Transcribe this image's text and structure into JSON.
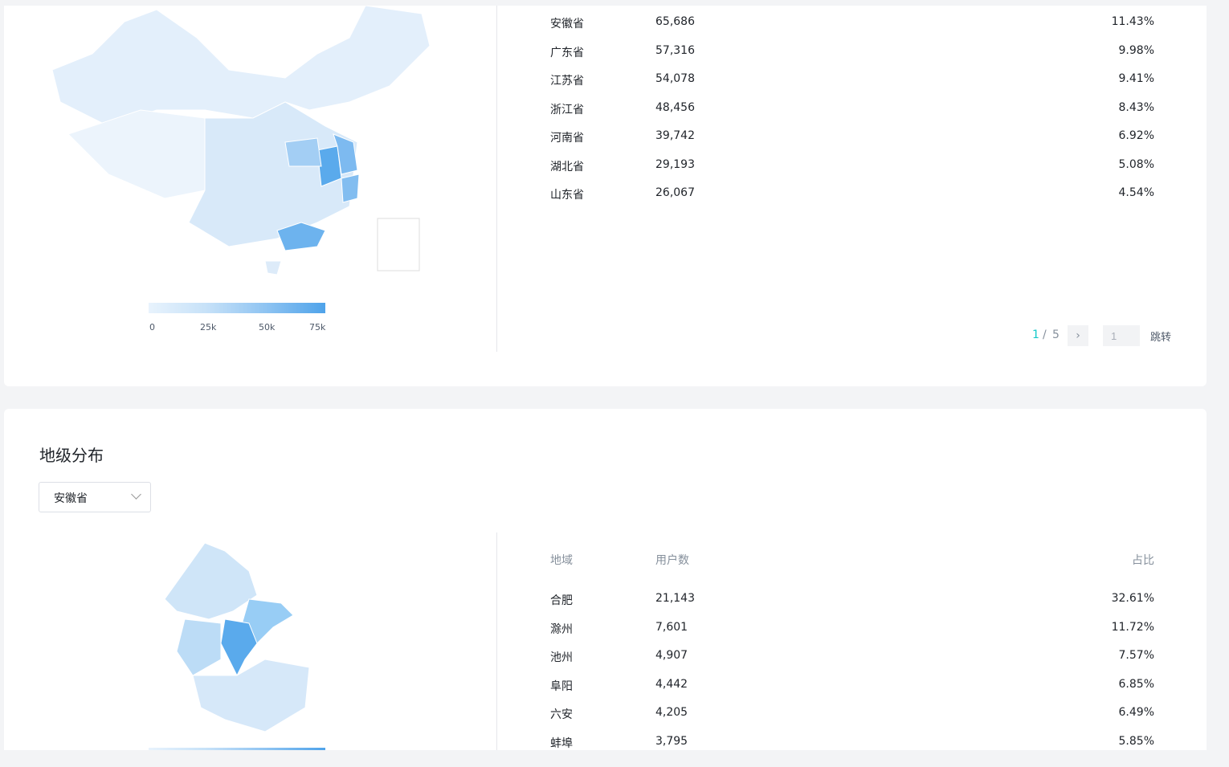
{
  "province_table": {
    "rows": [
      {
        "region": "安徽省",
        "users": "65,686",
        "share": "11.43%"
      },
      {
        "region": "广东省",
        "users": "57,316",
        "share": "9.98%"
      },
      {
        "region": "江苏省",
        "users": "54,078",
        "share": "9.41%"
      },
      {
        "region": "浙江省",
        "users": "48,456",
        "share": "8.43%"
      },
      {
        "region": "河南省",
        "users": "39,742",
        "share": "6.92%"
      },
      {
        "region": "湖北省",
        "users": "29,193",
        "share": "5.08%"
      },
      {
        "region": "山东省",
        "users": "26,067",
        "share": "4.54%"
      }
    ],
    "pagination": {
      "current": "1",
      "separator": "/",
      "total": "5",
      "jump_input": "1",
      "jump_label": "跳转"
    }
  },
  "province_map": {
    "legend_ticks": [
      "0",
      "25k",
      "50k",
      "75k"
    ],
    "colors": {
      "low": "#e8f3fd",
      "high": "#4fa3ea"
    }
  },
  "city_section": {
    "title": "地级分布",
    "province_select": "安徽省",
    "headers": {
      "region": "地域",
      "users": "用户数",
      "share": "占比"
    },
    "rows": [
      {
        "region": "合肥",
        "users": "21,143",
        "share": "32.61%"
      },
      {
        "region": "滁州",
        "users": "7,601",
        "share": "11.72%"
      },
      {
        "region": "池州",
        "users": "4,907",
        "share": "7.57%"
      },
      {
        "region": "阜阳",
        "users": "4,442",
        "share": "6.85%"
      },
      {
        "region": "六安",
        "users": "4,205",
        "share": "6.49%"
      },
      {
        "region": "蚌埠",
        "users": "3,795",
        "share": "5.85%"
      }
    ]
  },
  "accent_color": "#14c9c9"
}
